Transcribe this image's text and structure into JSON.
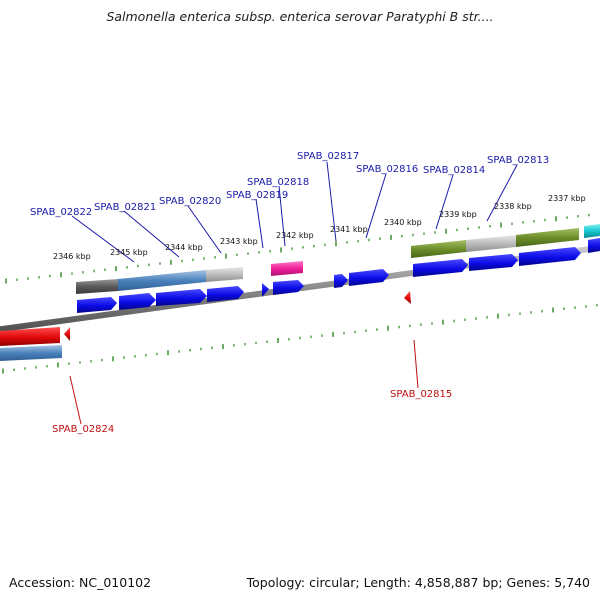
{
  "title": "Salmonella enterica subsp. enterica serovar Paratyphi B str....",
  "accession_label": "Accession: NC_010102",
  "summary_label": "Topology: circular; Length: 4,858,887 bp; Genes: 5,740",
  "colors": {
    "forward_cds": "#0a0ae6",
    "reverse_cds": "#e60a0a",
    "tick": "#2a8a1e",
    "label_forward": "#1a1aa8",
    "label_reverse": "#c01010",
    "backbone": "#8a8a8a"
  },
  "scale_labels": [
    "2346 kbp",
    "2345 kbp",
    "2344 kbp",
    "2343 kbp",
    "2342 kbp",
    "2341 kbp",
    "2340 kbp",
    "2339 kbp",
    "2338 kbp",
    "2337 kbp"
  ],
  "gene_labels_forward": [
    "SPAB_02822",
    "SPAB_02821",
    "SPAB_02820",
    "SPAB_02819",
    "SPAB_02818",
    "SPAB_02817",
    "SPAB_02816",
    "SPAB_02814",
    "SPAB_02813"
  ],
  "gene_labels_reverse": [
    "SPAB_02824",
    "SPAB_02815"
  ]
}
